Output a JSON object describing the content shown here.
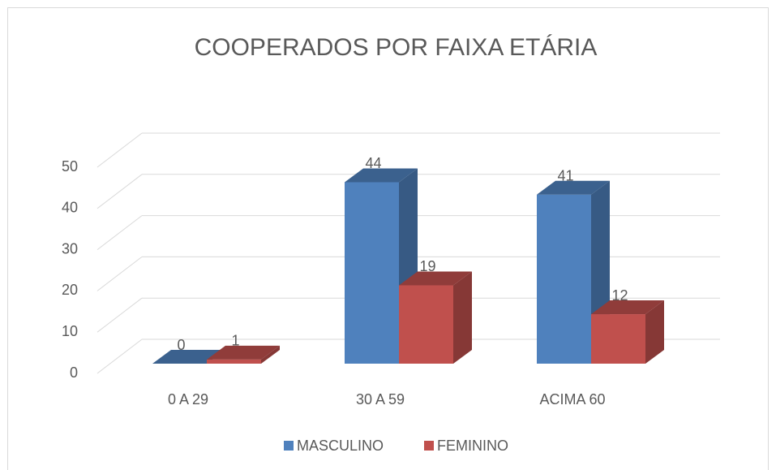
{
  "chart_data": {
    "type": "bar3d",
    "title": "COOPERADOS POR FAIXA ETÁRIA",
    "categories": [
      "0 A 29",
      "30 A 59",
      "ACIMA 60"
    ],
    "series": [
      {
        "name": "MASCULINO",
        "color": "#4f81bd",
        "values": [
          0,
          44,
          41
        ]
      },
      {
        "name": "FEMININO",
        "color": "#c0504d",
        "values": [
          1,
          19,
          12
        ]
      }
    ],
    "ylim": [
      0,
      50
    ],
    "yticks": [
      0,
      10,
      20,
      30,
      40,
      50
    ],
    "grid": true,
    "legend": "bottom"
  }
}
